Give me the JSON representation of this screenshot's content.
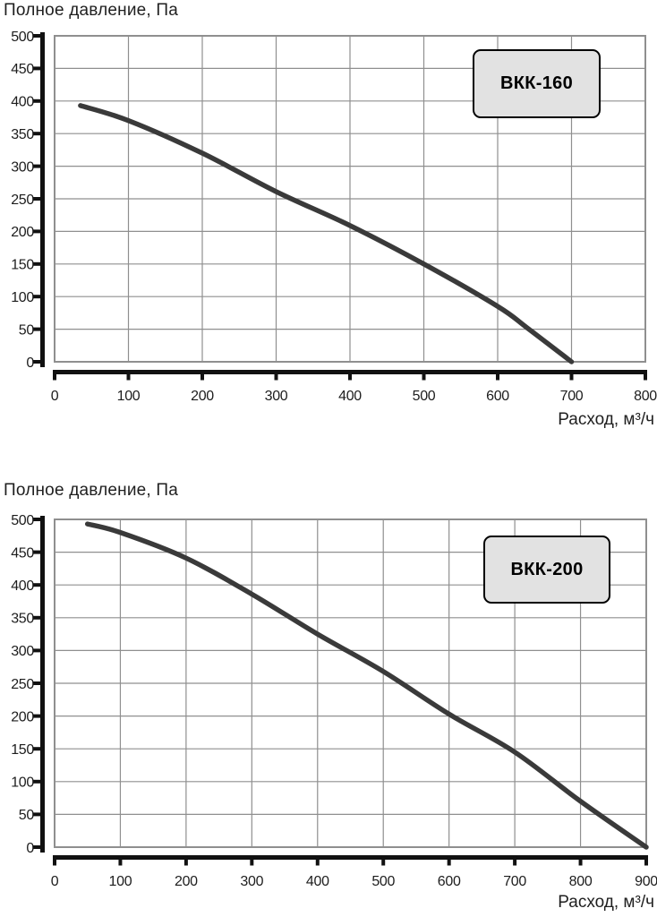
{
  "page": {
    "background": "#ffffff"
  },
  "colors": {
    "grid": "#8f8f8f",
    "plot_border": "#8f8f8f",
    "axis": "#111111",
    "curve": "#3a3a3a",
    "text": "#1d1d1d",
    "legend_fill": "#e2e2e2",
    "legend_border": "#000000"
  },
  "chart_data": [
    {
      "type": "line",
      "title": "Полное давление, Па",
      "xlabel": "Расход, м³/ч",
      "ylabel": "Полное давление, Па",
      "xlim": [
        0,
        800
      ],
      "ylim": [
        0,
        500
      ],
      "xtick_step": 100,
      "ytick_step": 50,
      "grid": true,
      "legend_position": "top-right",
      "series": [
        {
          "name": "ВКК-160",
          "points": [
            [
              35,
              393
            ],
            [
              100,
              370
            ],
            [
              200,
              320
            ],
            [
              300,
              261
            ],
            [
              400,
              209
            ],
            [
              500,
              150
            ],
            [
              600,
              85
            ],
            [
              640,
              52
            ],
            [
              700,
              0
            ]
          ]
        }
      ]
    },
    {
      "type": "line",
      "title": "Полное давление, Па",
      "xlabel": "Расход, м³/ч",
      "ylabel": "Полное давление, Па",
      "xlim": [
        0,
        900
      ],
      "ylim": [
        0,
        500
      ],
      "xtick_step": 100,
      "ytick_step": 50,
      "grid": true,
      "legend_position": "top-right",
      "series": [
        {
          "name": "ВКК-200",
          "points": [
            [
              50,
              493
            ],
            [
              100,
              480
            ],
            [
              200,
              441
            ],
            [
              300,
              386
            ],
            [
              400,
              325
            ],
            [
              500,
              268
            ],
            [
              600,
              203
            ],
            [
              700,
              145
            ],
            [
              800,
              70
            ],
            [
              900,
              0
            ]
          ]
        }
      ]
    }
  ]
}
